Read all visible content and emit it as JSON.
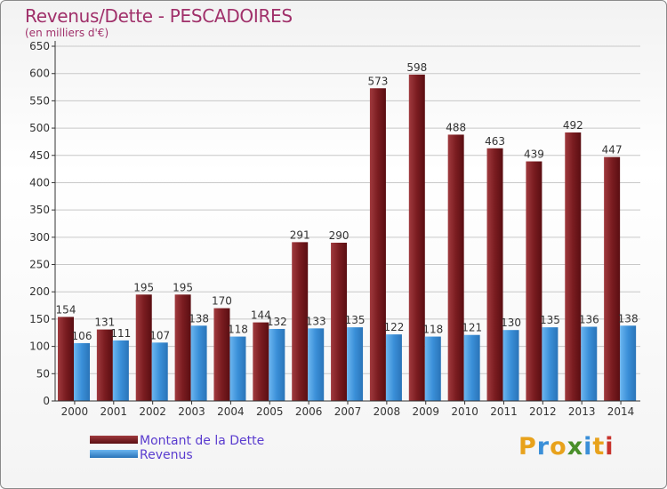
{
  "header": {
    "title": "Revenus/Dette - PESCADOIRES",
    "subtitle": "(en milliers d'€)"
  },
  "legend": {
    "items": [
      {
        "label": "Montant de la Dette",
        "color": "#7a1c20"
      },
      {
        "label": "Revenus",
        "color": "#3a8fd8"
      }
    ]
  },
  "logo": {
    "letters": [
      "P",
      "r",
      "o",
      "x",
      "i",
      "t",
      "i"
    ],
    "colors": [
      "#e8a21c",
      "#3a8fd8",
      "#e8a21c",
      "#4a8f2a",
      "#3a8fd8",
      "#e8a21c",
      "#c8332c"
    ]
  },
  "chart_data": {
    "type": "bar",
    "title": "Revenus/Dette - PESCADOIRES",
    "subtitle": "(en milliers d'€)",
    "categories": [
      "2000",
      "2001",
      "2002",
      "2003",
      "2004",
      "2005",
      "2006",
      "2007",
      "2008",
      "2009",
      "2010",
      "2011",
      "2012",
      "2013",
      "2014"
    ],
    "series": [
      {
        "name": "Montant de la Dette",
        "color": "#7a1c20",
        "values": [
          154,
          131,
          195,
          195,
          170,
          144,
          291,
          290,
          573,
          598,
          488,
          463,
          439,
          492,
          447
        ]
      },
      {
        "name": "Revenus",
        "color": "#3a8fd8",
        "values": [
          106,
          111,
          107,
          138,
          118,
          132,
          133,
          135,
          122,
          118,
          121,
          130,
          135,
          136,
          138
        ]
      }
    ],
    "ylim": [
      0,
      650
    ],
    "yticks": [
      0,
      50,
      100,
      150,
      200,
      250,
      300,
      350,
      400,
      450,
      500,
      550,
      600,
      650
    ],
    "grid": true,
    "legend_position": "bottom-left"
  }
}
